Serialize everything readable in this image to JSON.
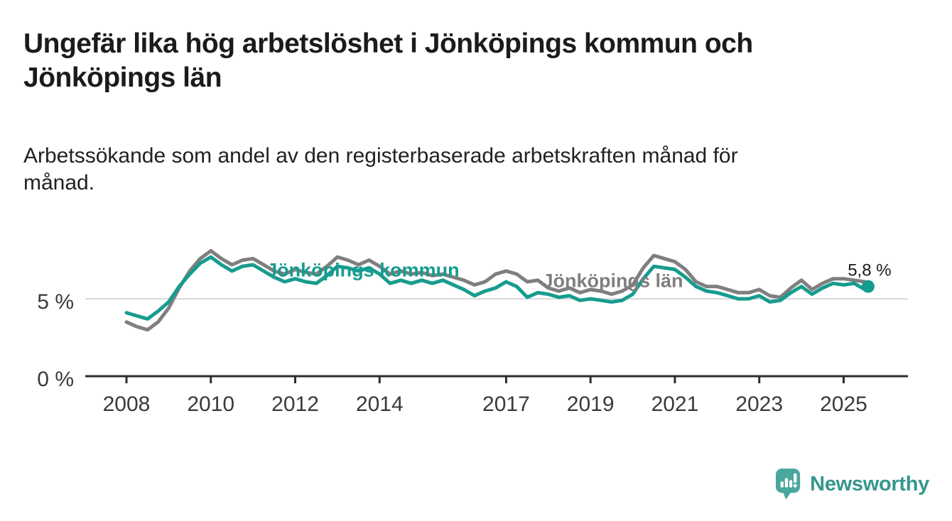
{
  "header": {
    "title_line1": "Ungefär lika hög arbetslöshet i Jönköpings kommun och",
    "title_line2": "Jönköpings län",
    "subtitle_line1": "Arbetssökande som andel av den registerbaserade arbetskraften månad för",
    "subtitle_line2": "månad."
  },
  "footer": {
    "brand": "Newsworthy",
    "brand_color": "#35968e",
    "icon": "bar-chart-speech-bubble-icon",
    "icon_color": "#4aa69e"
  },
  "chart_data": {
    "type": "line",
    "title": "Ungefär lika hög arbetslöshet i Jönköpings kommun och Jönköpings län",
    "subtitle": "Arbetssökande som andel av den registerbaserade arbetskraften månad för månad.",
    "y_unit": "%",
    "ylim": [
      0,
      9.2
    ],
    "xlim": [
      2007.0,
      2026.5
    ],
    "grid": "single-horizontal-gridline-at-5",
    "legend": "inline-series-labels",
    "y_ticks": [
      {
        "value": 5,
        "label": "5 %",
        "gridline": true
      },
      {
        "value": 0,
        "label": "0 %",
        "gridline": false
      }
    ],
    "x_ticks": [
      {
        "value": 2008,
        "label": "2008"
      },
      {
        "value": 2010,
        "label": "2010"
      },
      {
        "value": 2012,
        "label": "2012"
      },
      {
        "value": 2014,
        "label": "2014"
      },
      {
        "value": 2017,
        "label": "2017"
      },
      {
        "value": 2019,
        "label": "2019"
      },
      {
        "value": 2021,
        "label": "2021"
      },
      {
        "value": 2023,
        "label": "2023"
      },
      {
        "value": 2025,
        "label": "2025"
      }
    ],
    "x": [
      2008.0,
      2008.25,
      2008.5,
      2008.75,
      2009.0,
      2009.25,
      2009.5,
      2009.75,
      2010.0,
      2010.25,
      2010.5,
      2010.75,
      2011.0,
      2011.25,
      2011.5,
      2011.75,
      2012.0,
      2012.25,
      2012.5,
      2012.75,
      2013.0,
      2013.25,
      2013.5,
      2013.75,
      2014.0,
      2014.25,
      2014.5,
      2014.75,
      2015.0,
      2015.25,
      2015.5,
      2015.75,
      2016.0,
      2016.25,
      2016.5,
      2016.75,
      2017.0,
      2017.25,
      2017.5,
      2017.75,
      2018.0,
      2018.25,
      2018.5,
      2018.75,
      2019.0,
      2019.25,
      2019.5,
      2019.75,
      2020.0,
      2020.25,
      2020.5,
      2020.75,
      2021.0,
      2021.25,
      2021.5,
      2021.75,
      2022.0,
      2022.25,
      2022.5,
      2022.75,
      2023.0,
      2023.25,
      2023.5,
      2023.75,
      2024.0,
      2024.25,
      2024.5,
      2024.75,
      2025.0,
      2025.25,
      2025.5,
      2025.58
    ],
    "series": [
      {
        "id": "kommun",
        "name": "Jönköpings kommun",
        "color": "#169c8f",
        "label": {
          "text": "Jönköpings kommun",
          "x": 2011.32,
          "y": 6.45
        },
        "values": [
          4.1,
          3.9,
          3.7,
          4.2,
          4.8,
          5.8,
          6.6,
          7.3,
          7.7,
          7.2,
          6.8,
          7.1,
          7.2,
          6.8,
          6.4,
          6.1,
          6.3,
          6.1,
          6.0,
          6.5,
          7.1,
          7.0,
          6.8,
          7.0,
          6.6,
          6.0,
          6.2,
          6.0,
          6.2,
          6.0,
          6.2,
          5.9,
          5.6,
          5.2,
          5.5,
          5.7,
          6.1,
          5.8,
          5.1,
          5.4,
          5.3,
          5.1,
          5.2,
          4.9,
          5.0,
          4.9,
          4.8,
          4.9,
          5.3,
          6.3,
          7.1,
          7.0,
          6.9,
          6.4,
          5.8,
          5.5,
          5.4,
          5.2,
          5.0,
          5.0,
          5.2,
          4.8,
          4.9,
          5.4,
          5.8,
          5.3,
          5.7,
          6.0,
          5.9,
          6.0,
          5.6,
          5.8
        ]
      },
      {
        "id": "lan",
        "name": "Jönköpings län",
        "color": "#7f7f7f",
        "label": {
          "text": "Jönköpings län",
          "x": 2017.86,
          "y": 5.75
        },
        "values": [
          3.5,
          3.2,
          3.0,
          3.5,
          4.4,
          5.7,
          6.8,
          7.6,
          8.1,
          7.6,
          7.2,
          7.5,
          7.6,
          7.2,
          6.8,
          6.6,
          6.9,
          6.7,
          6.6,
          7.1,
          7.7,
          7.5,
          7.2,
          7.5,
          7.1,
          6.6,
          6.8,
          6.6,
          6.7,
          6.5,
          6.6,
          6.4,
          6.2,
          5.9,
          6.1,
          6.6,
          6.8,
          6.6,
          6.1,
          6.2,
          5.7,
          5.5,
          5.7,
          5.4,
          5.6,
          5.5,
          5.3,
          5.5,
          5.9,
          7.0,
          7.8,
          7.6,
          7.4,
          6.9,
          6.1,
          5.8,
          5.8,
          5.6,
          5.4,
          5.4,
          5.6,
          5.2,
          5.1,
          5.7,
          6.2,
          5.6,
          6.0,
          6.3,
          6.3,
          6.2,
          6.1,
          null
        ]
      }
    ],
    "end_label": {
      "text": "5,8 %",
      "value": 5.8,
      "series": "Jönköpings kommun"
    }
  }
}
